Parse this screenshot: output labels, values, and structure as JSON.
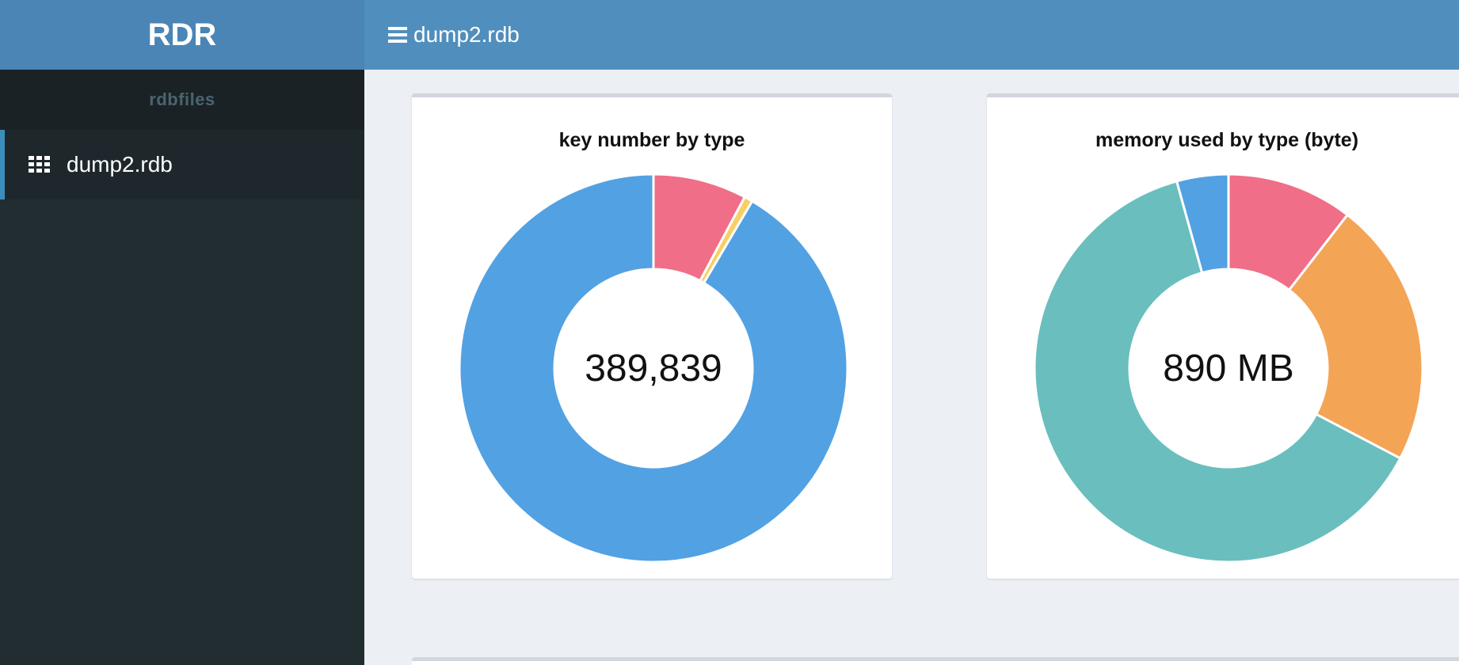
{
  "app": {
    "logo": "RDR"
  },
  "sidebar": {
    "header": "rdbfiles",
    "items": [
      {
        "label": "dump2.rdb",
        "icon": "grid-icon",
        "active": true
      }
    ]
  },
  "topbar": {
    "menu_icon": "hamburger-icon",
    "title": "dump2.rdb"
  },
  "colors": {
    "blue": "#52a1e3",
    "pink": "#f06e87",
    "yellow": "#f7cf64",
    "orange": "#f4a455",
    "teal": "#6abebe",
    "header": "#508fbd",
    "logo_bg": "#4a85b6",
    "sidebar_bg": "#222d32"
  },
  "chart_data": [
    {
      "type": "pie",
      "title": "key number by type",
      "center_label": "389,839",
      "slices": [
        {
          "color": "#f06e87",
          "value": 0.078
        },
        {
          "color": "#f7cf64",
          "value": 0.007
        },
        {
          "color": "#52a1e3",
          "value": 0.915
        }
      ]
    },
    {
      "type": "pie",
      "title": "memory used by type (byte)",
      "center_label": "890 MB",
      "slices": [
        {
          "color": "#f06e87",
          "value": 0.105
        },
        {
          "color": "#f4a455",
          "value": 0.222
        },
        {
          "color": "#6abebe",
          "value": 0.63
        },
        {
          "color": "#52a1e3",
          "value": 0.043
        }
      ]
    }
  ]
}
